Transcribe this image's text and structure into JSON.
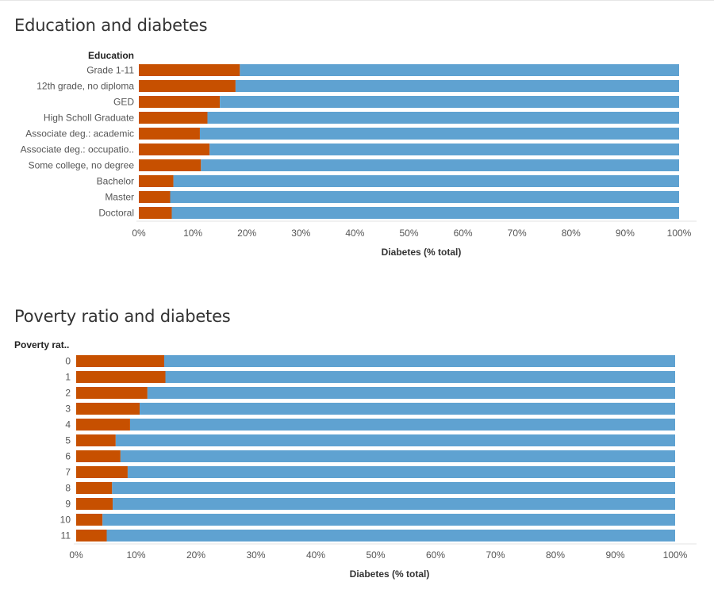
{
  "chart_data": [
    {
      "type": "bar",
      "orientation": "horizontal",
      "stacked": true,
      "normalized": true,
      "title": "Education and diabetes",
      "row_header": "Education",
      "xlabel": "Diabetes (% total)",
      "xlim": [
        0,
        100
      ],
      "x_ticks": [
        "0%",
        "10%",
        "20%",
        "30%",
        "40%",
        "50%",
        "60%",
        "70%",
        "80%",
        "90%",
        "100%"
      ],
      "categories": [
        "Grade 1-11",
        "12th grade, no diploma",
        "GED",
        "High Scholl Graduate",
        "Associate deg.: academic",
        "Associate deg.: occupatio..",
        "Some college, no degree",
        "Bachelor",
        "Master",
        "Doctoral"
      ],
      "series": [
        {
          "color": "#c75000",
          "values": [
            18.7,
            17.9,
            15.0,
            12.7,
            11.3,
            13.1,
            11.5,
            6.4,
            5.8,
            6.1
          ]
        },
        {
          "color": "#5fa2d1",
          "values": [
            81.3,
            82.1,
            85.0,
            87.3,
            88.7,
            86.9,
            88.5,
            93.6,
            94.2,
            93.9
          ]
        }
      ],
      "grid": false
    },
    {
      "type": "bar",
      "orientation": "horizontal",
      "stacked": true,
      "normalized": true,
      "title": "Poverty ratio and diabetes",
      "row_header": "Poverty rat..",
      "xlabel": "Diabetes (% total)",
      "xlim": [
        0,
        100
      ],
      "x_ticks": [
        "0%",
        "10%",
        "20%",
        "30%",
        "40%",
        "50%",
        "60%",
        "70%",
        "80%",
        "90%",
        "100%"
      ],
      "categories": [
        "0",
        "1",
        "2",
        "3",
        "4",
        "5",
        "6",
        "7",
        "8",
        "9",
        "10",
        "11"
      ],
      "series": [
        {
          "color": "#c75000",
          "values": [
            14.7,
            14.9,
            11.9,
            10.6,
            9.0,
            6.6,
            7.4,
            8.6,
            6.0,
            6.1,
            4.4,
            5.1
          ]
        },
        {
          "color": "#5fa2d1",
          "values": [
            85.3,
            85.1,
            88.1,
            89.4,
            91.0,
            93.4,
            92.6,
            91.4,
            94.0,
            93.9,
            95.6,
            94.9
          ]
        }
      ],
      "grid": false
    }
  ]
}
